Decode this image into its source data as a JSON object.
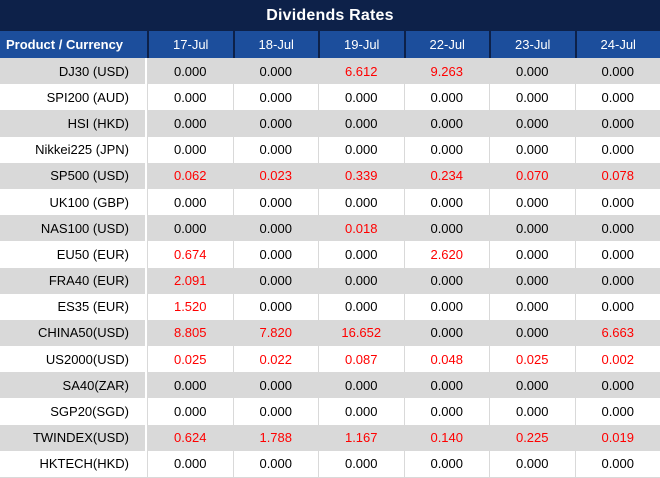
{
  "chart_data": {
    "type": "table",
    "title": "Dividends Rates",
    "columns": [
      "Product / Currency",
      "17-Jul",
      "18-Jul",
      "19-Jul",
      "22-Jul",
      "23-Jul",
      "24-Jul"
    ],
    "rows": [
      {
        "product": "DJ30 (USD)",
        "values": [
          "0.000",
          "0.000",
          "6.612",
          "9.263",
          "0.000",
          "0.000"
        ],
        "red": [
          false,
          false,
          true,
          true,
          false,
          false
        ]
      },
      {
        "product": "SPI200 (AUD)",
        "values": [
          "0.000",
          "0.000",
          "0.000",
          "0.000",
          "0.000",
          "0.000"
        ],
        "red": [
          false,
          false,
          false,
          false,
          false,
          false
        ]
      },
      {
        "product": "HSI (HKD)",
        "values": [
          "0.000",
          "0.000",
          "0.000",
          "0.000",
          "0.000",
          "0.000"
        ],
        "red": [
          false,
          false,
          false,
          false,
          false,
          false
        ]
      },
      {
        "product": "Nikkei225 (JPN)",
        "values": [
          "0.000",
          "0.000",
          "0.000",
          "0.000",
          "0.000",
          "0.000"
        ],
        "red": [
          false,
          false,
          false,
          false,
          false,
          false
        ]
      },
      {
        "product": "SP500 (USD)",
        "values": [
          "0.062",
          "0.023",
          "0.339",
          "0.234",
          "0.070",
          "0.078"
        ],
        "red": [
          true,
          true,
          true,
          true,
          true,
          true
        ]
      },
      {
        "product": "UK100 (GBP)",
        "values": [
          "0.000",
          "0.000",
          "0.000",
          "0.000",
          "0.000",
          "0.000"
        ],
        "red": [
          false,
          false,
          false,
          false,
          false,
          false
        ]
      },
      {
        "product": "NAS100 (USD)",
        "values": [
          "0.000",
          "0.000",
          "0.018",
          "0.000",
          "0.000",
          "0.000"
        ],
        "red": [
          false,
          false,
          true,
          false,
          false,
          false
        ]
      },
      {
        "product": "EU50 (EUR)",
        "values": [
          "0.674",
          "0.000",
          "0.000",
          "2.620",
          "0.000",
          "0.000"
        ],
        "red": [
          true,
          false,
          false,
          true,
          false,
          false
        ]
      },
      {
        "product": "FRA40 (EUR)",
        "values": [
          "2.091",
          "0.000",
          "0.000",
          "0.000",
          "0.000",
          "0.000"
        ],
        "red": [
          true,
          false,
          false,
          false,
          false,
          false
        ]
      },
      {
        "product": "ES35 (EUR)",
        "values": [
          "1.520",
          "0.000",
          "0.000",
          "0.000",
          "0.000",
          "0.000"
        ],
        "red": [
          true,
          false,
          false,
          false,
          false,
          false
        ]
      },
      {
        "product": "CHINA50(USD)",
        "values": [
          "8.805",
          "7.820",
          "16.652",
          "0.000",
          "0.000",
          "6.663"
        ],
        "red": [
          true,
          true,
          true,
          false,
          false,
          true
        ]
      },
      {
        "product": "US2000(USD)",
        "values": [
          "0.025",
          "0.022",
          "0.087",
          "0.048",
          "0.025",
          "0.002"
        ],
        "red": [
          true,
          true,
          true,
          true,
          true,
          true
        ]
      },
      {
        "product": "SA40(ZAR)",
        "values": [
          "0.000",
          "0.000",
          "0.000",
          "0.000",
          "0.000",
          "0.000"
        ],
        "red": [
          false,
          false,
          false,
          false,
          false,
          false
        ]
      },
      {
        "product": "SGP20(SGD)",
        "values": [
          "0.000",
          "0.000",
          "0.000",
          "0.000",
          "0.000",
          "0.000"
        ],
        "red": [
          false,
          false,
          false,
          false,
          false,
          false
        ]
      },
      {
        "product": "TWINDEX(USD)",
        "values": [
          "0.624",
          "1.788",
          "1.167",
          "0.140",
          "0.225",
          "0.019"
        ],
        "red": [
          true,
          true,
          true,
          true,
          true,
          true
        ]
      },
      {
        "product": "HKTECH(HKD)",
        "values": [
          "0.000",
          "0.000",
          "0.000",
          "0.000",
          "0.000",
          "0.000"
        ],
        "red": [
          false,
          false,
          false,
          false,
          false,
          false
        ]
      }
    ]
  },
  "colors": {
    "title_bg": "#0d2149",
    "header_bg": "#1c4e9c",
    "alt_row_bg": "#d9d9d9",
    "row_bg": "#ffffff",
    "dividend_red": "#ff0000",
    "text": "#000000",
    "header_text": "#ffffff"
  }
}
